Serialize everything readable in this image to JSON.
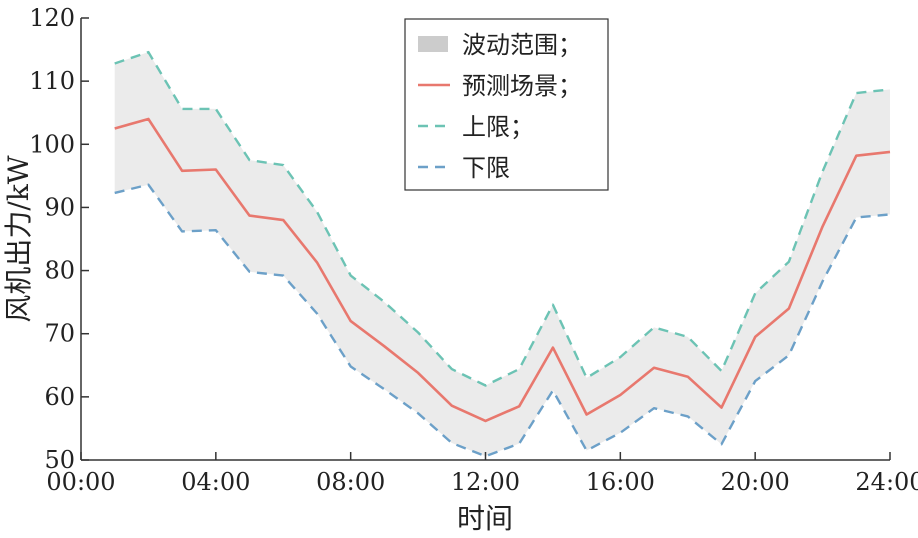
{
  "chart_data": {
    "type": "line",
    "xlabel": "时间",
    "ylabel": "风机出力/kW",
    "xlim": [
      0,
      24
    ],
    "ylim": [
      50,
      120
    ],
    "x_ticks": [
      0,
      4,
      8,
      12,
      16,
      20,
      24
    ],
    "x_tick_labels": [
      "00:00",
      "04:00",
      "08:00",
      "12:00",
      "16:00",
      "20:00",
      "24:00"
    ],
    "y_ticks": [
      50,
      60,
      70,
      80,
      90,
      100,
      110,
      120
    ],
    "y_tick_labels": [
      "50",
      "60",
      "70",
      "80",
      "90",
      "100",
      "110",
      "120"
    ],
    "x": [
      1,
      2,
      3,
      4,
      5,
      6,
      7,
      8,
      9,
      10,
      11,
      12,
      13,
      14,
      15,
      16,
      17,
      18,
      19,
      20,
      21,
      22,
      23,
      24
    ],
    "series": [
      {
        "name": "波动范围；",
        "kind": "band",
        "color": "#cccccc",
        "fill": "#ebebeb"
      },
      {
        "name": "预测场景；",
        "kind": "line",
        "color": "#e8786e",
        "dash": "solid",
        "values": [
          102.5,
          104,
          95.8,
          96,
          88.7,
          88,
          81.3,
          72,
          68,
          63.8,
          58.6,
          56.2,
          58.5,
          67.8,
          57.2,
          60.3,
          64.6,
          63.2,
          58.3,
          69.5,
          74,
          87,
          98.2,
          98.8
        ]
      },
      {
        "name": "上限；",
        "kind": "line",
        "color": "#6cc3b4",
        "dash": "dashed",
        "values": [
          112.8,
          114.6,
          105.6,
          105.6,
          97.5,
          96.7,
          89.3,
          79.2,
          75,
          70.2,
          64.4,
          61.8,
          64.4,
          74.6,
          63,
          66.3,
          71,
          69.5,
          64.1,
          76.4,
          81.4,
          95.7,
          108.1,
          108.7
        ]
      },
      {
        "name": "下限",
        "kind": "line",
        "color": "#6ca0c8",
        "dash": "dashed",
        "values": [
          92.3,
          93.6,
          86.2,
          86.4,
          79.8,
          79.2,
          73.2,
          64.8,
          61.2,
          57.4,
          52.7,
          50.6,
          52.6,
          61,
          51.5,
          54.3,
          58.2,
          56.9,
          52.5,
          62.5,
          66.6,
          78.3,
          88.4,
          88.9
        ]
      }
    ],
    "legend_position": "top-center",
    "grid": false
  }
}
